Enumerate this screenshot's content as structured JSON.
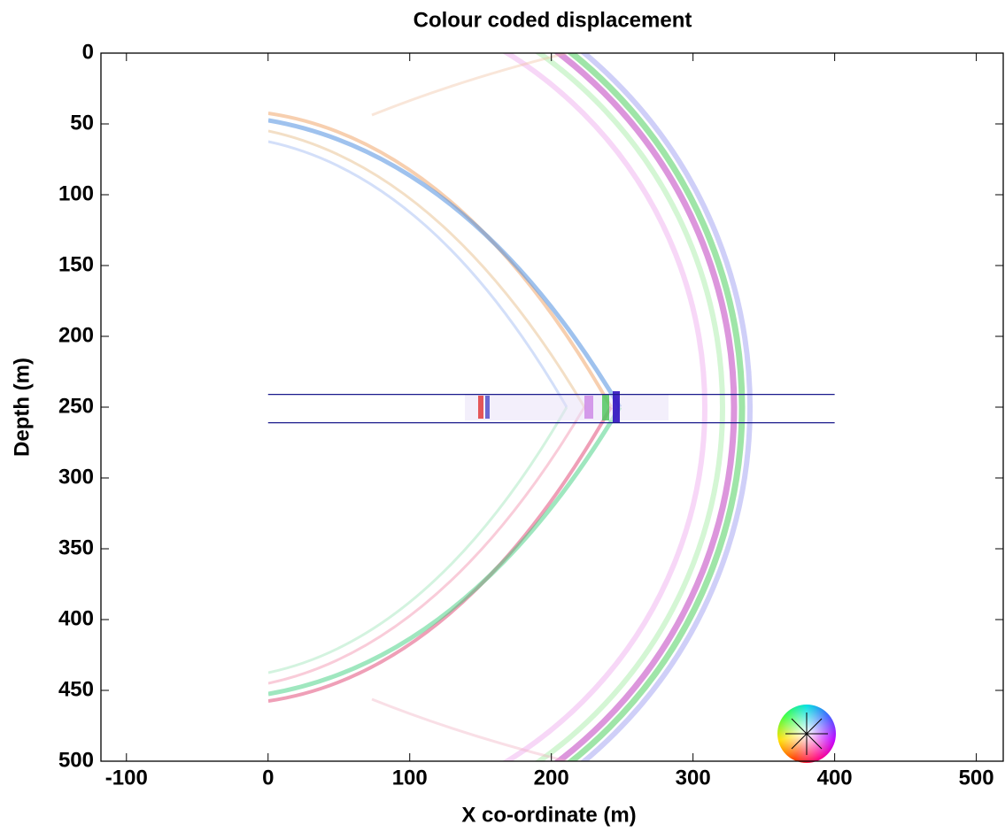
{
  "chart_data": {
    "type": "image",
    "title": "Colour coded displacement",
    "xlabel": "X co-ordinate (m)",
    "ylabel": "Depth (m)",
    "xlim": [
      -118,
      519
    ],
    "ylim": [
      0,
      500
    ],
    "y_reversed": true,
    "xticks": [
      -100,
      0,
      100,
      200,
      300,
      400,
      500
    ],
    "yticks": [
      0,
      50,
      100,
      150,
      200,
      250,
      300,
      350,
      400,
      450,
      500
    ],
    "horizontal_lines": [
      {
        "y": 241,
        "xmin": 0,
        "xmax": 400,
        "color": "#1a1a8c"
      },
      {
        "y": 261,
        "xmin": 0,
        "xmax": 400,
        "color": "#1a1a8c"
      }
    ]
  }
}
